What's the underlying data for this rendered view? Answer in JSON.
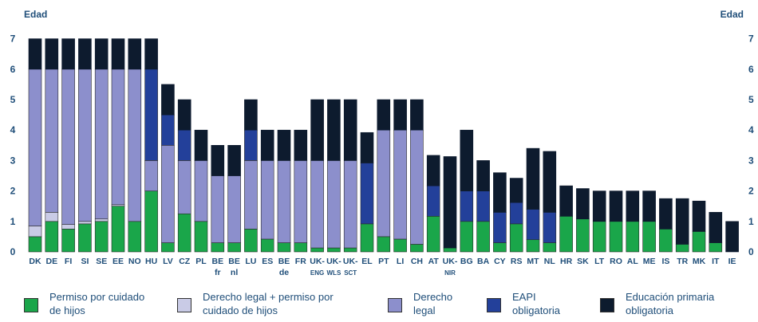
{
  "colors": {
    "permiso": "#1aa64a",
    "derecho_permiso": "#c9cbe6",
    "derecho": "#8c8fcc",
    "eapi": "#23409a",
    "primaria": "#0d1b2e",
    "text": "#1f4e79",
    "dots": "#2e86d6"
  },
  "chart_data": {
    "type": "bar",
    "title": "",
    "ylabel": "Edad",
    "ylabel_right": "Edad",
    "ylim": [
      0,
      7
    ],
    "yticks": [
      "0",
      "1",
      "2",
      "3",
      "4",
      "5",
      "6",
      "7"
    ],
    "stacked": true,
    "categories": [
      {
        "code": "DK"
      },
      {
        "code": "DE"
      },
      {
        "code": "FI"
      },
      {
        "code": "SI"
      },
      {
        "code": "SE"
      },
      {
        "code": "EE"
      },
      {
        "code": "NO"
      },
      {
        "code": "HU"
      },
      {
        "code": "LV"
      },
      {
        "code": "CZ"
      },
      {
        "code": "PL"
      },
      {
        "code": "BE",
        "sub": "fr"
      },
      {
        "code": "BE",
        "sub": "nl"
      },
      {
        "code": "LU"
      },
      {
        "code": "ES"
      },
      {
        "code": "BE",
        "sub": "de"
      },
      {
        "code": "FR"
      },
      {
        "code": "UK-",
        "sub": "ENG"
      },
      {
        "code": "UK-",
        "sub": "WLS"
      },
      {
        "code": "UK-",
        "sub": "SCT"
      },
      {
        "code": "EL"
      },
      {
        "code": "PT"
      },
      {
        "code": "LI"
      },
      {
        "code": "CH"
      },
      {
        "code": "AT"
      },
      {
        "code": "UK-",
        "sub": "NIR"
      },
      {
        "code": "BG"
      },
      {
        "code": "BA"
      },
      {
        "code": "CY"
      },
      {
        "code": "RS"
      },
      {
        "code": "MT"
      },
      {
        "code": "NL"
      },
      {
        "code": "HR"
      },
      {
        "code": "SK"
      },
      {
        "code": "LT"
      },
      {
        "code": "RO"
      },
      {
        "code": "AL"
      },
      {
        "code": "ME"
      },
      {
        "code": "IS"
      },
      {
        "code": "TR"
      },
      {
        "code": "MK"
      },
      {
        "code": "IT"
      },
      {
        "code": "IE"
      }
    ],
    "series": [
      {
        "name": "Permiso por cuidado de hijos",
        "color_key": "permiso",
        "values": [
          0.5,
          1,
          0.75,
          0.92,
          1,
          1.5,
          1,
          2,
          0.3,
          1.25,
          1,
          0.3,
          0.3,
          0.75,
          0.42,
          0.3,
          0.3,
          0.13,
          0.13,
          0.13,
          0.92,
          0.5,
          0.42,
          0.25,
          1.17,
          0.13,
          1,
          1,
          0.3,
          0.92,
          0.4,
          0.3,
          1.17,
          1.08,
          1,
          1,
          1,
          1,
          0.75,
          0.25,
          0.67,
          0.3,
          0
        ]
      },
      {
        "name": "Derecho legal + permiso por cuidado de hijos",
        "color_key": "derecho_permiso",
        "values": [
          0.35,
          0.3,
          0.15,
          0.08,
          0.08,
          0.05,
          0,
          0,
          0,
          0,
          0,
          0,
          0,
          0,
          0,
          0,
          0,
          0,
          0,
          0,
          0,
          0,
          0,
          0,
          0,
          0,
          0,
          0,
          0,
          0,
          0,
          0,
          0,
          0,
          0,
          0,
          0,
          0,
          0,
          0,
          0,
          0,
          0
        ]
      },
      {
        "name": "Derecho legal",
        "color_key": "derecho",
        "values": [
          5.15,
          4.7,
          5.1,
          5.0,
          4.92,
          4.45,
          5,
          1,
          3.2,
          1.75,
          2,
          2.2,
          2.2,
          2.25,
          2.58,
          2.7,
          2.7,
          2.87,
          2.87,
          2.87,
          0,
          3.5,
          3.58,
          3.75,
          0,
          0,
          0,
          0,
          0,
          0,
          0,
          0,
          0,
          0,
          0,
          0,
          0,
          0,
          0,
          0,
          0,
          0,
          0
        ]
      },
      {
        "name": "EAPI obligatoria",
        "color_key": "eapi",
        "values": [
          0,
          0,
          0,
          0,
          0,
          0,
          0,
          3,
          1,
          1,
          0,
          0,
          0,
          1,
          0,
          0,
          0,
          0,
          0,
          0,
          2,
          0,
          0,
          0,
          1,
          0,
          1,
          1,
          1,
          0.7,
          1,
          1,
          0,
          0,
          0,
          0,
          0,
          0,
          0,
          0,
          0,
          0,
          0
        ]
      },
      {
        "name": "Educación primaria obligatoria",
        "color_key": "primaria",
        "values": [
          1,
          1,
          1,
          1,
          1,
          1,
          1,
          1,
          1,
          1,
          1,
          1,
          1,
          1,
          1,
          1,
          1,
          2,
          2,
          2,
          1,
          1,
          1,
          1,
          1,
          3,
          2,
          1,
          1.3,
          0.8,
          2,
          2,
          1,
          1,
          1,
          1,
          1,
          1,
          1,
          1.5,
          1,
          1,
          1
        ]
      },
      {
        "name": "",
        "color_key": "",
        "values": [
          0,
          0,
          0,
          0,
          0,
          0,
          0,
          0,
          0,
          0,
          0,
          0,
          0,
          0,
          0,
          0,
          0,
          0,
          0,
          0,
          0,
          0,
          0,
          0,
          0,
          0,
          0,
          0,
          0,
          0,
          0,
          0,
          0,
          0,
          0,
          0,
          0,
          0,
          0,
          0,
          0,
          0,
          0
        ]
      }
    ]
  },
  "legend": [
    {
      "label": "Permiso por cuidado\nde hijos",
      "color_key": "permiso"
    },
    {
      "label": "Derecho legal + permiso por\ncuidado de hijos",
      "color_key": "derecho_permiso"
    },
    {
      "label": "Derecho\nlegal",
      "color_key": "derecho"
    },
    {
      "label": "EAPI\nobligatoria",
      "color_key": "eapi"
    },
    {
      "label": "Educación primaria\nobligatoria",
      "color_key": "primaria"
    }
  ]
}
